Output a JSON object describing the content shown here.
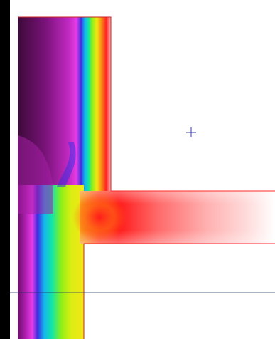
{
  "view": {
    "type": "thermal-isotherm-view",
    "background_color": "#ffffff",
    "frame_color": "#000000",
    "colormap": [
      "#3d0a3a",
      "#6a0f6a",
      "#a61fa6",
      "#e03fe0",
      "#2d2de6",
      "#12c3ee",
      "#12e69a",
      "#98ee12",
      "#f6e414",
      "#f68a14",
      "#ff1f1f",
      "#ff9a9a",
      "#ffffff"
    ],
    "icons": {
      "cursor": "crosshair-icon"
    },
    "guide_line_color": "#223366"
  }
}
